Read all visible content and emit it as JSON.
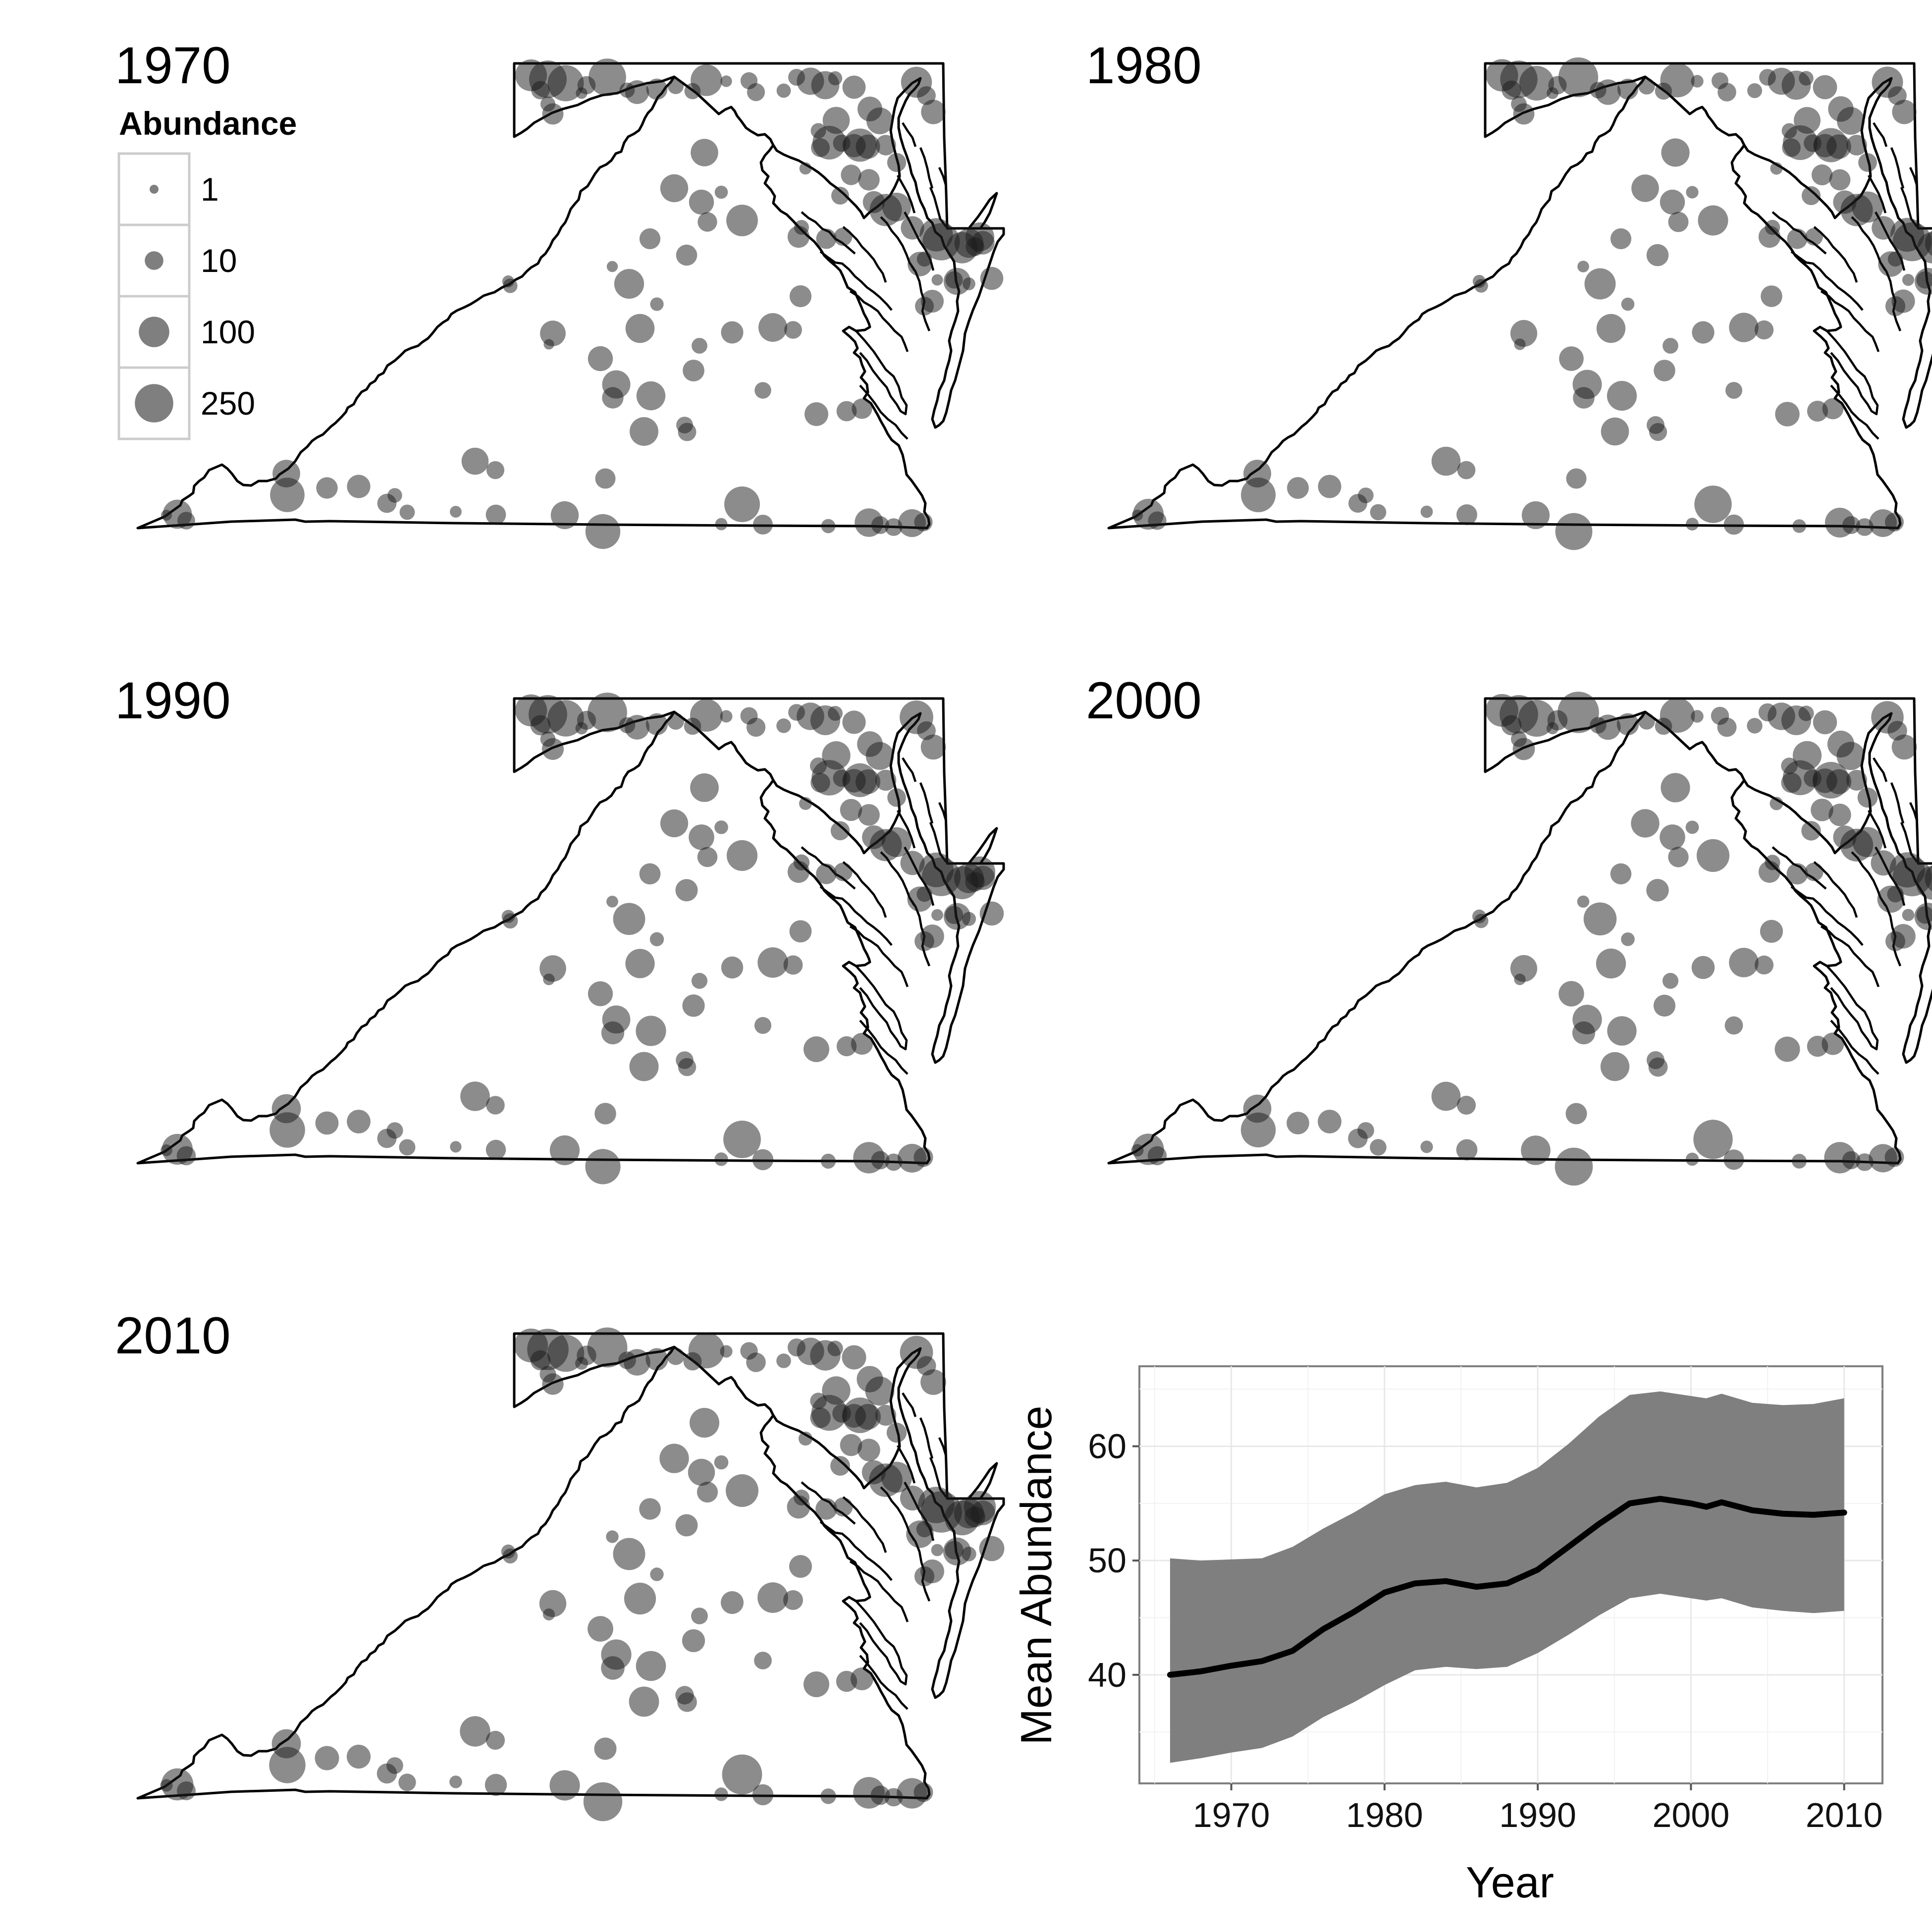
{
  "panels": [
    {
      "label": "1970",
      "decade": 1970
    },
    {
      "label": "1980",
      "decade": 1980
    },
    {
      "label": "1990",
      "decade": 1990
    },
    {
      "label": "2000",
      "decade": 2000
    },
    {
      "label": "2010",
      "decade": 2010
    }
  ],
  "legend": {
    "title": "Abundance",
    "items": [
      {
        "label": "1",
        "value": 1
      },
      {
        "label": "10",
        "value": 10
      },
      {
        "label": "100",
        "value": 100
      },
      {
        "label": "250",
        "value": 250
      }
    ]
  },
  "colors": {
    "point": "#1a1a1a",
    "point_opacity": 0.5,
    "ribbon": "#7f7f7f",
    "line": "#000000",
    "outline": "#000000",
    "grid": "#e8e8e8"
  },
  "chart_data": {
    "type": "line",
    "xlabel": "Year",
    "ylabel": "Mean Abundance",
    "xlim": [
      1964,
      2012.5
    ],
    "ylim": [
      30.5,
      67
    ],
    "xticks": [
      1970,
      1980,
      1990,
      2000,
      2010
    ],
    "yticks": [
      40,
      50,
      60
    ],
    "grid": true,
    "series": [
      {
        "x": [
          1966,
          1968,
          1970,
          1972,
          1974,
          1976,
          1978,
          1980,
          1982,
          1984,
          1986,
          1988,
          1990,
          1992,
          1994,
          1996,
          1998,
          2000,
          2001,
          2002,
          2004,
          2006,
          2008,
          2010
        ],
        "mean": [
          40.0,
          40.3,
          40.8,
          41.2,
          42.1,
          44.0,
          45.5,
          47.2,
          48.0,
          48.2,
          47.7,
          48.0,
          49.2,
          51.2,
          53.2,
          55.0,
          55.4,
          55.0,
          54.7,
          55.1,
          54.4,
          54.1,
          54.0,
          54.2
        ],
        "lower": [
          32.3,
          32.7,
          33.2,
          33.6,
          34.6,
          36.3,
          37.6,
          39.1,
          40.4,
          40.7,
          40.5,
          40.7,
          41.9,
          43.5,
          45.2,
          46.7,
          47.1,
          46.7,
          46.5,
          46.7,
          45.9,
          45.6,
          45.4,
          45.6
        ],
        "upper": [
          50.2,
          50.0,
          50.1,
          50.2,
          51.2,
          52.8,
          54.2,
          55.8,
          56.6,
          56.9,
          56.4,
          56.8,
          58.1,
          60.2,
          62.6,
          64.5,
          64.8,
          64.4,
          64.2,
          64.6,
          63.8,
          63.6,
          63.7,
          64.2
        ]
      }
    ]
  }
}
